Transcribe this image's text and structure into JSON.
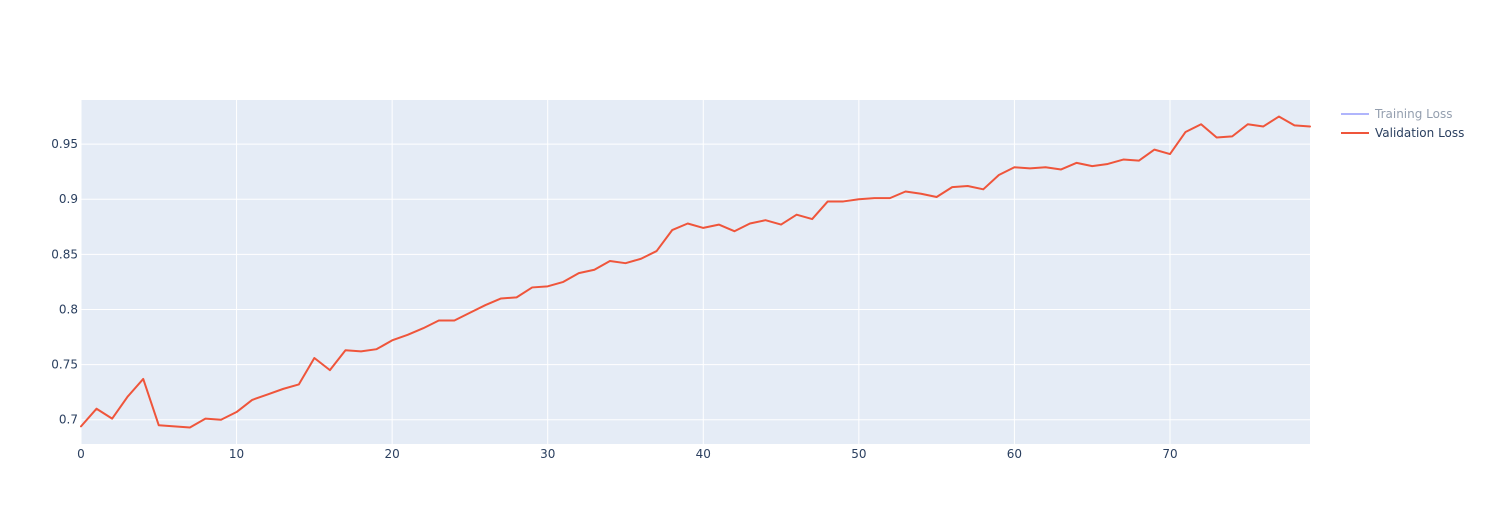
{
  "chart_data": {
    "type": "line",
    "title": "",
    "xlabel": "",
    "ylabel": "",
    "xlim": [
      0,
      79
    ],
    "ylim": [
      0.678,
      0.99
    ],
    "grid": true,
    "legend_position": "top-right",
    "x_ticks": [
      0,
      10,
      20,
      30,
      40,
      50,
      60,
      70
    ],
    "y_ticks": [
      0.7,
      0.75,
      0.8,
      0.85,
      0.9,
      0.95
    ],
    "x_tick_labels": [
      "0",
      "10",
      "20",
      "30",
      "40",
      "50",
      "60",
      "70"
    ],
    "y_tick_labels": [
      "0.7",
      "0.75",
      "0.8",
      "0.85",
      "0.9",
      "0.95"
    ],
    "colors": {
      "plot_background": "#e5ecf6",
      "grid": "#ffffff",
      "tick_text": "#2a3f5f"
    },
    "series": [
      {
        "name": "Training Loss",
        "color": "#636efa",
        "legend_only": true,
        "values": []
      },
      {
        "name": "Validation Loss",
        "color": "#ef553b",
        "legend_only": false,
        "x": [
          0,
          1,
          2,
          3,
          4,
          5,
          6,
          7,
          8,
          9,
          10,
          11,
          12,
          13,
          14,
          15,
          16,
          17,
          18,
          19,
          20,
          21,
          22,
          23,
          24,
          25,
          26,
          27,
          28,
          29,
          30,
          31,
          32,
          33,
          34,
          35,
          36,
          37,
          38,
          39,
          40,
          41,
          42,
          43,
          44,
          45,
          46,
          47,
          48,
          49,
          50,
          51,
          52,
          53,
          54,
          55,
          56,
          57,
          58,
          59,
          60,
          61,
          62,
          63,
          64,
          65,
          66,
          67,
          68,
          69,
          70,
          71,
          72,
          73,
          74,
          75,
          76,
          77,
          78,
          79
        ],
        "values": [
          0.694,
          0.71,
          0.701,
          0.721,
          0.737,
          0.695,
          0.694,
          0.693,
          0.701,
          0.7,
          0.707,
          0.718,
          0.723,
          0.728,
          0.732,
          0.756,
          0.745,
          0.763,
          0.762,
          0.764,
          0.772,
          0.777,
          0.783,
          0.79,
          0.79,
          0.797,
          0.804,
          0.81,
          0.811,
          0.82,
          0.821,
          0.825,
          0.833,
          0.836,
          0.844,
          0.842,
          0.846,
          0.853,
          0.872,
          0.878,
          0.874,
          0.877,
          0.871,
          0.878,
          0.881,
          0.877,
          0.886,
          0.882,
          0.898,
          0.898,
          0.9,
          0.901,
          0.901,
          0.907,
          0.905,
          0.902,
          0.911,
          0.912,
          0.909,
          0.922,
          0.929,
          0.928,
          0.929,
          0.927,
          0.933,
          0.93,
          0.932,
          0.936,
          0.935,
          0.945,
          0.941,
          0.961,
          0.968,
          0.956,
          0.957,
          0.968,
          0.966,
          0.975,
          0.967,
          0.966
        ]
      }
    ]
  }
}
